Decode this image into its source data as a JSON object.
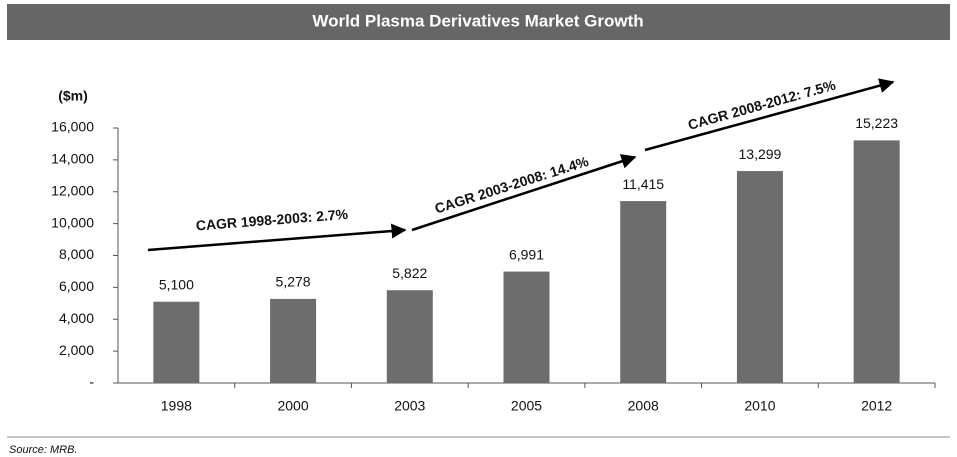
{
  "chart_data": {
    "type": "bar",
    "title": "World Plasma Derivatives Market Growth",
    "y_label": "($m)",
    "categories": [
      "1998",
      "2000",
      "2003",
      "2005",
      "2008",
      "2010",
      "2012"
    ],
    "values": [
      5100,
      5278,
      5822,
      6991,
      11415,
      13299,
      15223
    ],
    "value_labels": [
      "5,100",
      "5,278",
      "5,822",
      "6,991",
      "11,415",
      "13,299",
      "15,223"
    ],
    "color": "#6d6d6d",
    "ylim": [
      0,
      16000
    ],
    "yticks": [
      {
        "value": 0,
        "label": "-"
      },
      {
        "value": 2000,
        "label": "2,000"
      },
      {
        "value": 4000,
        "label": "4,000"
      },
      {
        "value": 6000,
        "label": "6,000"
      },
      {
        "value": 8000,
        "label": "8,000"
      },
      {
        "value": 10000,
        "label": "10,000"
      },
      {
        "value": 12000,
        "label": "12,000"
      },
      {
        "value": 14000,
        "label": "14,000"
      },
      {
        "value": 16000,
        "label": "16,000"
      }
    ],
    "annotations": [
      "CAGR 1998-2003:  2.7%",
      "CAGR 2003-2008:  14.4%",
      "CAGR 2008-2012:  7.5%"
    ],
    "source": "Source:  MRB."
  }
}
